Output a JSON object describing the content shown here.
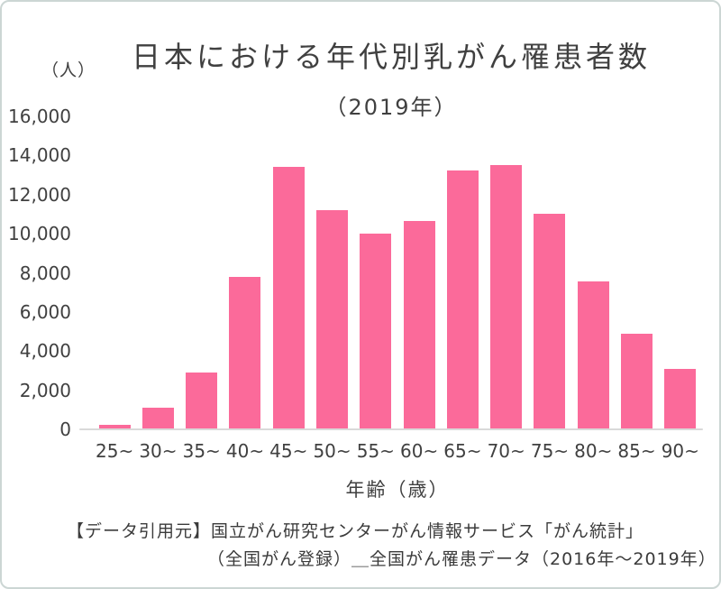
{
  "title": "日本における年代別乳がん罹患者数",
  "subtitle": "（2019年）",
  "unit_label": "（人）",
  "chart_data": {
    "type": "bar",
    "title": "日本における年代別乳がん罹患者数（2019年）",
    "categories": [
      "25~",
      "30~",
      "35~",
      "40~",
      "45~",
      "50~",
      "55~",
      "60~",
      "65~",
      "70~",
      "75~",
      "80~",
      "85~",
      "90~"
    ],
    "values": [
      250,
      1100,
      2900,
      7800,
      13400,
      11200,
      10000,
      10650,
      13250,
      13500,
      11000,
      7550,
      4900,
      3100
    ],
    "xlabel": "年齢（歳）",
    "ylabel": "（人）",
    "ylim": [
      0,
      16000
    ],
    "ytick_step": 2000,
    "grid": false,
    "legend": "none",
    "bar_color": "#fb6a9a",
    "axis_line_color": "#d9d9d9",
    "text_color": "#404040"
  },
  "source": {
    "line1": "【データ引用元】国立がん研究センターがん情報サービス「がん統計」",
    "line2": "（全国がん登録）＿全国がん罹患データ（2016年～2019年）"
  }
}
